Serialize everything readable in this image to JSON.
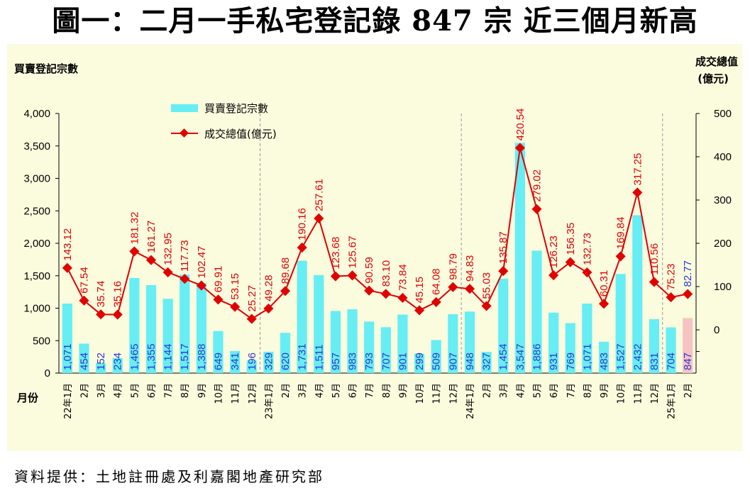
{
  "title": "圖一：二月一手私宅登記錄 847 宗  近三個月新高",
  "source": "資料提供：土地註冊處及利嘉閣地產研究部",
  "colors": {
    "bar": "#66eef4",
    "bar_highlight": "#f6c3c3",
    "line": "#e00000",
    "bar_label": "#2d35d8",
    "panel_bg": "#fbfbde"
  },
  "chart_data": {
    "type": "bar",
    "title": "圖一：二月一手私宅登記錄 847 宗  近三個月新高",
    "ylabel": "買賣登記宗數",
    "y2label": "成交總值",
    "y2unit": "(億元)",
    "xlabel": "月份",
    "ylim": [
      0,
      4000
    ],
    "y2lim": [
      -100,
      500
    ],
    "yticks": [
      "0",
      "500",
      "1,000",
      "1,500",
      "2,000",
      "2,500",
      "3,000",
      "3,500",
      "4,000"
    ],
    "y2ticks": [
      "0",
      "100",
      "200",
      "300",
      "400",
      "500"
    ],
    "grid": false,
    "legend_position": "top-left",
    "categories": [
      "22年1月",
      "2月",
      "3月",
      "4月",
      "5月",
      "6月",
      "7月",
      "8月",
      "9月",
      "10月",
      "11月",
      "12月",
      "23年1月",
      "2月",
      "3月",
      "4月",
      "5月",
      "6月",
      "7月",
      "8月",
      "9月",
      "10月",
      "11月",
      "12月",
      "24年1月",
      "2月",
      "3月",
      "4月",
      "5月",
      "6月",
      "7月",
      "8月",
      "9月",
      "10月",
      "11月",
      "12月",
      "25年1月",
      "2月"
    ],
    "series": [
      {
        "name": "買賣登記宗數",
        "type": "bar",
        "axis": "left",
        "values": [
          1071,
          454,
          152,
          234,
          1465,
          1355,
          1144,
          1517,
          1388,
          649,
          341,
          196,
          329,
          620,
          1731,
          1511,
          957,
          983,
          793,
          707,
          901,
          299,
          509,
          907,
          948,
          327,
          1454,
          3547,
          1886,
          931,
          769,
          1071,
          483,
          1527,
          2432,
          831,
          704,
          847
        ],
        "labels": [
          "1,071",
          "454",
          "152",
          "234",
          "1,465",
          "1,355",
          "1,144",
          "1,517",
          "1,388",
          "649",
          "341",
          "196",
          "329",
          "620",
          "1,731",
          "1,511",
          "957",
          "983",
          "793",
          "707",
          "901",
          "299",
          "509",
          "907",
          "948",
          "327",
          "1,454",
          "3,547",
          "1,886",
          "931",
          "769",
          "1,071",
          "483",
          "1,527",
          "2,432",
          "831",
          "704",
          "847"
        ]
      },
      {
        "name": "成交總值(億元)",
        "type": "line",
        "axis": "right",
        "values": [
          143.12,
          67.54,
          35.74,
          35.16,
          181.32,
          161.27,
          132.95,
          117.73,
          102.47,
          69.91,
          53.15,
          25.27,
          49.28,
          89.68,
          190.16,
          257.61,
          123.68,
          125.67,
          90.59,
          83.1,
          73.84,
          45.15,
          64.08,
          98.79,
          94.83,
          55.03,
          135.87,
          420.54,
          279.02,
          126.23,
          156.35,
          132.73,
          60.31,
          169.84,
          317.25,
          110.56,
          75.23,
          82.77
        ],
        "labels": [
          "143.12",
          "67.54",
          "35.74",
          "35.16",
          "181.32",
          "161.27",
          "132.95",
          "117.73",
          "102.47",
          "69.91",
          "53.15",
          "25.27",
          "49.28",
          "89.68",
          "190.16",
          "257.61",
          "123.68",
          "125.67",
          "90.59",
          "83.10",
          "73.84",
          "45.15",
          "64.08",
          "98.79",
          "94.83",
          "55.03",
          "135.87",
          "420.54",
          "279.02",
          "126.23",
          "156.35",
          "132.73",
          "60.31",
          "169.84",
          "317.25",
          "110.56",
          "75.23",
          "82.77"
        ]
      }
    ],
    "highlight_index": 37
  }
}
